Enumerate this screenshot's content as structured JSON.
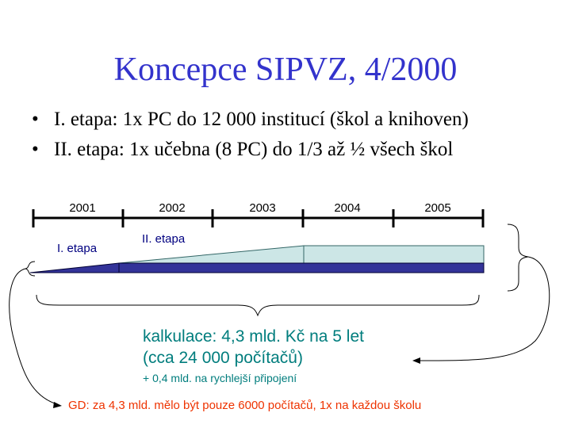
{
  "slide": {
    "title": "Koncepce SIPVZ, 4/2000",
    "bullets": [
      "I. etapa: 1x PC do 12 000 institucí (škol a knihoven)",
      "II. etapa: 1x učebna (8 PC) do 1/3 až ½ všech škol"
    ],
    "bullet_symbol": "•"
  },
  "timeline": {
    "years": [
      "2001",
      "2002",
      "2003",
      "2004",
      "2005"
    ],
    "phase1_label": "I. etapa",
    "phase2_label": "II. etapa"
  },
  "calculation": {
    "line1": "kalkulace: 4,3 mld. Kč na 5 let",
    "line2": "(cca 24 000 počítačů)",
    "line3": "+ 0,4 mld. na rychlejší připojení"
  },
  "gd_note": "GD: za 4,3 mld. mělo být pouze 6000 počítačů, 1x na každou školu",
  "colors": {
    "title": "#3333cc",
    "phase1_bar": "#333399",
    "phase2_bar": "#cce6e6",
    "calc_text": "#007d7d",
    "gd_text": "#ee3300"
  }
}
